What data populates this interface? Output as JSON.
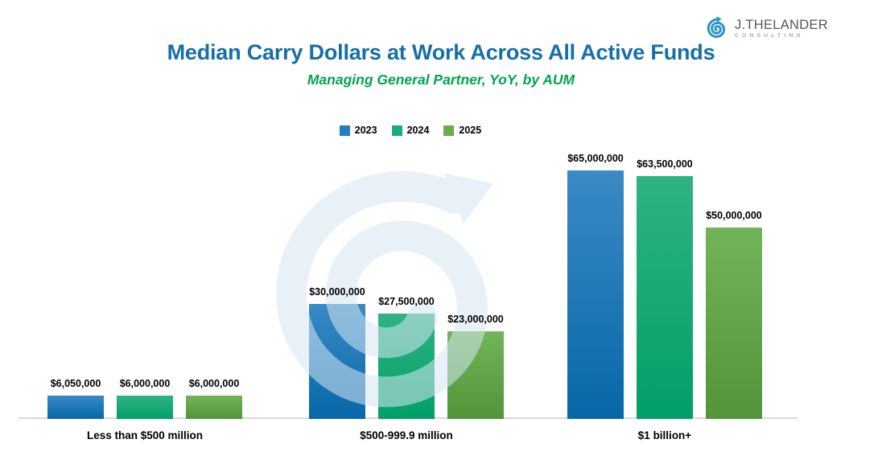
{
  "logo": {
    "name": "J.THELANDER",
    "tagline": "CONSULTING"
  },
  "colors": {
    "title": "#1470A6",
    "subtitle": "#00A44E",
    "axis_line": "#D9D9D9",
    "watermark": "#D6E7F3",
    "logo_spiral": "#2E93C6",
    "logo_text": "#55565A",
    "logo_tagline": "#7A7B7E",
    "label_text": "#000000"
  },
  "chart_data": {
    "type": "bar",
    "title": "Median Carry Dollars at Work Across All Active Funds",
    "subtitle": "Managing General Partner, YoY, by AUM",
    "categories": [
      "Less than $500 million",
      "$500-999.9 million",
      "$1 billion+"
    ],
    "series": [
      {
        "name": "2023",
        "legend_color": "#1F7FC2",
        "color_top": "#3A8AC5",
        "color_bottom": "#0767A7",
        "values": [
          6050000,
          30000000,
          65000000
        ],
        "labels": [
          "$6,050,000",
          "$30,000,000",
          "$65,000,000"
        ]
      },
      {
        "name": "2024",
        "legend_color": "#14AE7E",
        "color_top": "#2FB381",
        "color_bottom": "#019F67",
        "values": [
          6000000,
          27500000,
          63500000
        ],
        "labels": [
          "$6,000,000",
          "$27,500,000",
          "$63,500,000"
        ]
      },
      {
        "name": "2025",
        "legend_color": "#69AD4D",
        "color_top": "#72B458",
        "color_bottom": "#53943A",
        "values": [
          6000000,
          23000000,
          50000000
        ],
        "labels": [
          "$6,000,000",
          "$23,000,000",
          "$50,000,000"
        ]
      }
    ],
    "xlabel": "",
    "ylabel": "",
    "ylim": [
      0,
      65000000
    ],
    "grid": false,
    "legend_position": "top-center",
    "value_labels_shown": true,
    "y_axis_shown": false
  }
}
